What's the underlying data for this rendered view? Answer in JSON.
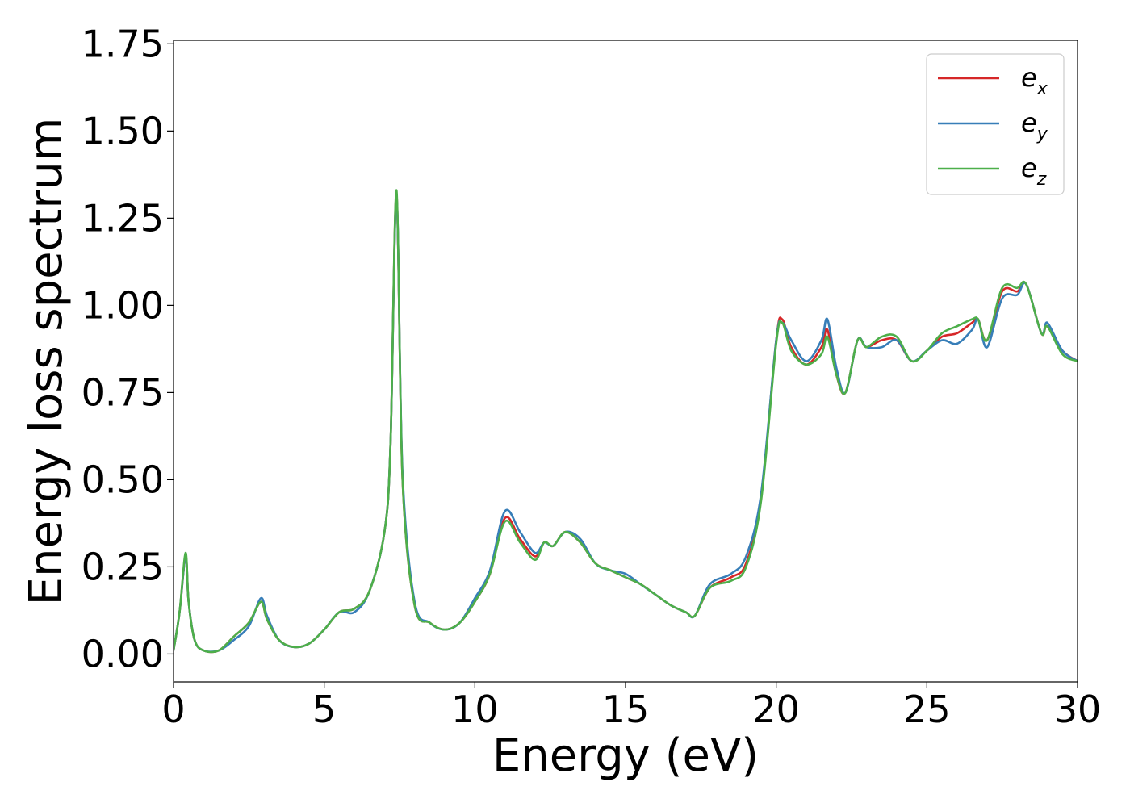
{
  "chart_data": {
    "type": "line",
    "xlabel": "Energy (eV)",
    "ylabel": "Energy loss spectrum",
    "xlim": [
      0,
      30
    ],
    "ylim": [
      -0.08,
      1.76
    ],
    "xticks": [
      0,
      5,
      10,
      15,
      20,
      25,
      30
    ],
    "xtick_labels": [
      "0",
      "5",
      "10",
      "15",
      "20",
      "25",
      "30"
    ],
    "yticks": [
      0.0,
      0.25,
      0.5,
      0.75,
      1.0,
      1.25,
      1.5,
      1.75
    ],
    "ytick_labels": [
      "0.00",
      "0.25",
      "0.50",
      "0.75",
      "1.00",
      "1.25",
      "1.50",
      "1.75"
    ],
    "grid": false,
    "legend_position": "top-right",
    "series": [
      {
        "name": "e_x",
        "base": "e",
        "sub": "x",
        "color": "#d62728",
        "x": [
          0,
          0.2,
          0.4,
          0.5,
          0.7,
          1.0,
          1.5,
          2.0,
          2.5,
          2.9,
          3.1,
          3.5,
          4.0,
          4.5,
          5.0,
          5.5,
          6.0,
          6.5,
          7.0,
          7.2,
          7.4,
          7.6,
          8.0,
          8.5,
          9.0,
          9.5,
          10.0,
          10.5,
          11.0,
          11.5,
          12.0,
          12.3,
          12.6,
          13.0,
          13.5,
          14.0,
          14.5,
          15.0,
          15.5,
          16.0,
          16.5,
          17.0,
          17.3,
          17.8,
          18.5,
          19.0,
          19.5,
          20.0,
          20.2,
          20.5,
          21.0,
          21.5,
          21.7,
          22.0,
          22.3,
          22.7,
          23.0,
          23.5,
          24.0,
          24.5,
          25.0,
          25.5,
          26.0,
          26.5,
          26.7,
          27.0,
          27.5,
          28.0,
          28.3,
          28.8,
          29.0,
          29.5,
          30.0
        ],
        "y": [
          0.01,
          0.12,
          0.28,
          0.15,
          0.04,
          0.01,
          0.01,
          0.05,
          0.09,
          0.15,
          0.1,
          0.04,
          0.02,
          0.03,
          0.07,
          0.12,
          0.13,
          0.18,
          0.35,
          0.6,
          1.32,
          0.5,
          0.14,
          0.09,
          0.07,
          0.09,
          0.15,
          0.23,
          0.39,
          0.33,
          0.28,
          0.32,
          0.31,
          0.35,
          0.32,
          0.26,
          0.24,
          0.22,
          0.2,
          0.17,
          0.14,
          0.12,
          0.11,
          0.19,
          0.22,
          0.26,
          0.45,
          0.9,
          0.96,
          0.88,
          0.83,
          0.88,
          0.93,
          0.8,
          0.75,
          0.9,
          0.88,
          0.9,
          0.9,
          0.84,
          0.87,
          0.91,
          0.92,
          0.95,
          0.96,
          0.9,
          1.04,
          1.04,
          1.06,
          0.92,
          0.94,
          0.87,
          0.84
        ]
      },
      {
        "name": "e_y",
        "base": "e",
        "sub": "y",
        "color": "#377eb8",
        "x": [
          0,
          0.2,
          0.4,
          0.5,
          0.7,
          1.0,
          1.5,
          2.0,
          2.5,
          2.9,
          3.1,
          3.5,
          4.0,
          4.5,
          5.0,
          5.5,
          6.0,
          6.5,
          7.0,
          7.2,
          7.4,
          7.6,
          8.0,
          8.5,
          9.0,
          9.5,
          10.0,
          10.5,
          11.0,
          11.5,
          12.0,
          12.3,
          12.6,
          13.0,
          13.5,
          14.0,
          14.5,
          15.0,
          15.5,
          16.0,
          16.5,
          17.0,
          17.3,
          17.8,
          18.5,
          19.0,
          19.5,
          20.0,
          20.2,
          20.5,
          21.0,
          21.5,
          21.7,
          22.0,
          22.3,
          22.7,
          23.0,
          23.5,
          24.0,
          24.5,
          25.0,
          25.5,
          26.0,
          26.5,
          26.7,
          27.0,
          27.5,
          28.0,
          28.3,
          28.8,
          29.0,
          29.5,
          30.0
        ],
        "y": [
          0.01,
          0.12,
          0.28,
          0.15,
          0.04,
          0.01,
          0.01,
          0.04,
          0.08,
          0.16,
          0.11,
          0.04,
          0.02,
          0.03,
          0.07,
          0.12,
          0.12,
          0.18,
          0.35,
          0.6,
          1.31,
          0.52,
          0.15,
          0.09,
          0.07,
          0.09,
          0.16,
          0.24,
          0.41,
          0.35,
          0.29,
          0.32,
          0.31,
          0.35,
          0.33,
          0.26,
          0.24,
          0.23,
          0.2,
          0.17,
          0.14,
          0.12,
          0.11,
          0.2,
          0.23,
          0.28,
          0.46,
          0.9,
          0.95,
          0.9,
          0.84,
          0.9,
          0.96,
          0.82,
          0.75,
          0.9,
          0.88,
          0.88,
          0.9,
          0.84,
          0.87,
          0.9,
          0.89,
          0.93,
          0.96,
          0.88,
          1.02,
          1.03,
          1.06,
          0.92,
          0.95,
          0.87,
          0.84
        ]
      },
      {
        "name": "e_z",
        "base": "e",
        "sub": "z",
        "color": "#4daf4a",
        "x": [
          0,
          0.2,
          0.4,
          0.5,
          0.7,
          1.0,
          1.5,
          2.0,
          2.5,
          2.9,
          3.1,
          3.5,
          4.0,
          4.5,
          5.0,
          5.5,
          6.0,
          6.5,
          7.0,
          7.2,
          7.4,
          7.6,
          8.0,
          8.5,
          9.0,
          9.5,
          10.0,
          10.5,
          11.0,
          11.5,
          12.0,
          12.3,
          12.6,
          13.0,
          13.5,
          14.0,
          14.5,
          15.0,
          15.5,
          16.0,
          16.5,
          17.0,
          17.3,
          17.8,
          18.5,
          19.0,
          19.5,
          20.0,
          20.2,
          20.5,
          21.0,
          21.5,
          21.7,
          22.0,
          22.3,
          22.7,
          23.0,
          23.5,
          24.0,
          24.5,
          25.0,
          25.5,
          26.0,
          26.5,
          26.7,
          27.0,
          27.5,
          28.0,
          28.3,
          28.8,
          29.0,
          29.5,
          30.0
        ],
        "y": [
          0.01,
          0.12,
          0.29,
          0.15,
          0.04,
          0.01,
          0.01,
          0.05,
          0.09,
          0.15,
          0.1,
          0.04,
          0.02,
          0.03,
          0.07,
          0.12,
          0.13,
          0.18,
          0.35,
          0.6,
          1.33,
          0.5,
          0.14,
          0.09,
          0.07,
          0.09,
          0.15,
          0.23,
          0.38,
          0.32,
          0.27,
          0.32,
          0.31,
          0.35,
          0.32,
          0.26,
          0.24,
          0.22,
          0.2,
          0.17,
          0.14,
          0.12,
          0.11,
          0.19,
          0.21,
          0.25,
          0.44,
          0.89,
          0.95,
          0.87,
          0.83,
          0.86,
          0.91,
          0.8,
          0.75,
          0.9,
          0.88,
          0.91,
          0.91,
          0.84,
          0.87,
          0.92,
          0.94,
          0.96,
          0.96,
          0.9,
          1.05,
          1.05,
          1.06,
          0.92,
          0.94,
          0.86,
          0.84
        ]
      }
    ]
  }
}
